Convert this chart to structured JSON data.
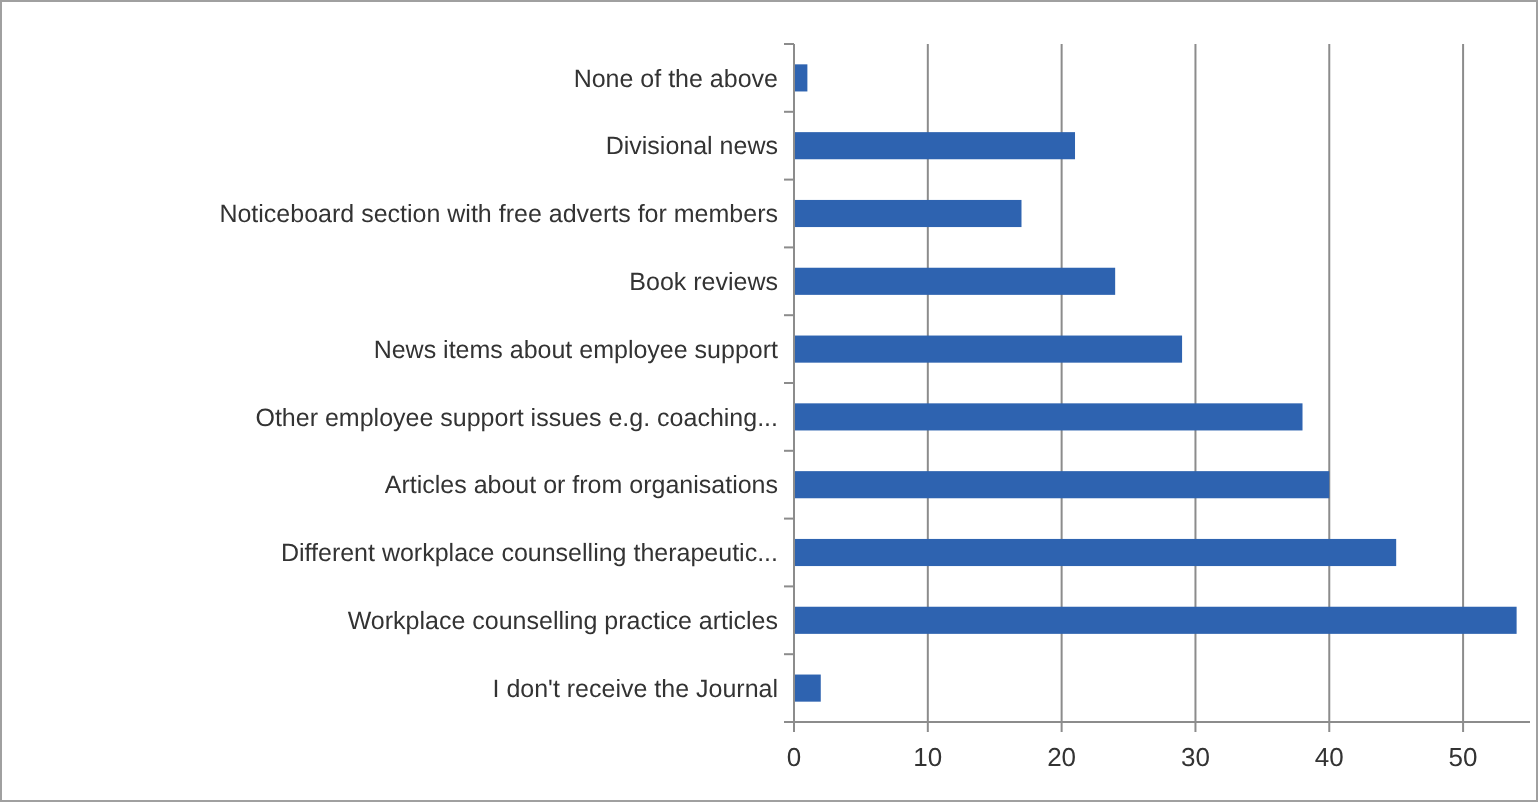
{
  "chart_data": {
    "type": "bar",
    "orientation": "horizontal",
    "categories": [
      "None of the above",
      "Divisional news",
      "Noticeboard section with free adverts for members",
      "Book reviews",
      "News items about employee support",
      "Other employee support issues e.g. coaching...",
      "Articles about or from organisations",
      "Different workplace counselling therapeutic...",
      "Workplace counselling practice articles",
      "I don't receive the Journal"
    ],
    "values": [
      1,
      21,
      17,
      24,
      29,
      38,
      40,
      45,
      54,
      2
    ],
    "color": "#2e63b0",
    "xlim": [
      0,
      55
    ],
    "xticks": [
      0,
      10,
      20,
      30,
      40,
      50
    ],
    "grid": "x"
  }
}
